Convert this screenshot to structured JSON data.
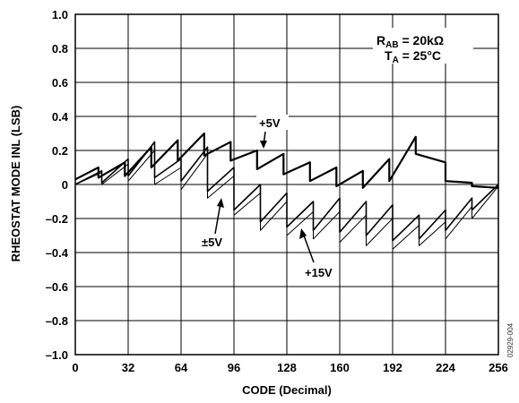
{
  "chart_data": {
    "type": "line",
    "xlabel": "CODE (Decimal)",
    "ylabel": "RHEOSTAT MODE INL (LSB)",
    "xlim": [
      0,
      256
    ],
    "ylim": [
      -1.0,
      1.0
    ],
    "x_ticks": [
      "0",
      "32",
      "64",
      "96",
      "128",
      "160",
      "192",
      "224",
      "256"
    ],
    "y_ticks": [
      "1.0",
      "0.8",
      "0.6",
      "0.4",
      "0.2",
      "0",
      "–0.2",
      "–0.4",
      "–0.6",
      "–0.8",
      "–1.0"
    ],
    "grid": true,
    "conditions": {
      "rab_main": "R",
      "rab_sub": "AB",
      "rab_value": " = 20kΩ",
      "ta_main": "T",
      "ta_sub": "A",
      "ta_value": " = 25°C"
    },
    "annotations": [
      {
        "text": "+5V",
        "series": 0
      },
      {
        "text": "±5V",
        "series": 1
      },
      {
        "text": "+15V",
        "series": 2
      }
    ],
    "watermark": "02929-004",
    "series": [
      {
        "name": "+5V",
        "stroke_width": 2.2,
        "points": [
          [
            0,
            0.03
          ],
          [
            14,
            0.1
          ],
          [
            14,
            0.04
          ],
          [
            30,
            0.13
          ],
          [
            30,
            0.05
          ],
          [
            46,
            0.22
          ],
          [
            46,
            0.1
          ],
          [
            62,
            0.26
          ],
          [
            62,
            0.14
          ],
          [
            78,
            0.3
          ],
          [
            78,
            0.17
          ],
          [
            94,
            0.25
          ],
          [
            94,
            0.14
          ],
          [
            110,
            0.2
          ],
          [
            110,
            0.09
          ],
          [
            126,
            0.18
          ],
          [
            126,
            0.06
          ],
          [
            142,
            0.13
          ],
          [
            142,
            0.02
          ],
          [
            158,
            0.1
          ],
          [
            158,
            -0.01
          ],
          [
            174,
            0.08
          ],
          [
            174,
            -0.02
          ],
          [
            190,
            0.15
          ],
          [
            190,
            0.02
          ],
          [
            206,
            0.28
          ],
          [
            206,
            0.18
          ],
          [
            224,
            0.13
          ],
          [
            224,
            0.02
          ],
          [
            240,
            0.01
          ],
          [
            240,
            -0.01
          ],
          [
            256,
            -0.02
          ]
        ]
      },
      {
        "name": "±5V",
        "stroke_width": 1.6,
        "points": [
          [
            0,
            0.0
          ],
          [
            16,
            0.08
          ],
          [
            16,
            0.01
          ],
          [
            32,
            0.15
          ],
          [
            32,
            0.05
          ],
          [
            48,
            0.25
          ],
          [
            48,
            0.04
          ],
          [
            64,
            0.15
          ],
          [
            64,
            0.02
          ],
          [
            80,
            0.22
          ],
          [
            80,
            -0.04
          ],
          [
            96,
            0.1
          ],
          [
            96,
            -0.15
          ],
          [
            112,
            0.0
          ],
          [
            112,
            -0.22
          ],
          [
            128,
            -0.05
          ],
          [
            128,
            -0.25
          ],
          [
            144,
            -0.1
          ],
          [
            144,
            -0.27
          ],
          [
            160,
            -0.08
          ],
          [
            160,
            -0.28
          ],
          [
            176,
            -0.1
          ],
          [
            176,
            -0.3
          ],
          [
            192,
            -0.12
          ],
          [
            192,
            -0.33
          ],
          [
            208,
            -0.18
          ],
          [
            208,
            -0.32
          ],
          [
            224,
            -0.15
          ],
          [
            224,
            -0.27
          ],
          [
            240,
            -0.08
          ],
          [
            240,
            -0.15
          ],
          [
            256,
            0.0
          ]
        ]
      },
      {
        "name": "+15V",
        "stroke_width": 1.0,
        "points": [
          [
            0,
            0.0
          ],
          [
            16,
            0.07
          ],
          [
            16,
            0.0
          ],
          [
            32,
            0.12
          ],
          [
            32,
            0.02
          ],
          [
            48,
            0.2
          ],
          [
            48,
            0.0
          ],
          [
            64,
            0.1
          ],
          [
            64,
            -0.03
          ],
          [
            80,
            0.18
          ],
          [
            80,
            -0.08
          ],
          [
            96,
            0.05
          ],
          [
            96,
            -0.18
          ],
          [
            112,
            -0.05
          ],
          [
            112,
            -0.27
          ],
          [
            128,
            -0.1
          ],
          [
            128,
            -0.3
          ],
          [
            144,
            -0.16
          ],
          [
            144,
            -0.32
          ],
          [
            160,
            -0.16
          ],
          [
            160,
            -0.34
          ],
          [
            176,
            -0.18
          ],
          [
            176,
            -0.36
          ],
          [
            192,
            -0.2
          ],
          [
            192,
            -0.38
          ],
          [
            208,
            -0.24
          ],
          [
            208,
            -0.36
          ],
          [
            224,
            -0.22
          ],
          [
            224,
            -0.32
          ],
          [
            240,
            -0.13
          ],
          [
            240,
            -0.2
          ],
          [
            256,
            -0.01
          ]
        ]
      }
    ]
  }
}
